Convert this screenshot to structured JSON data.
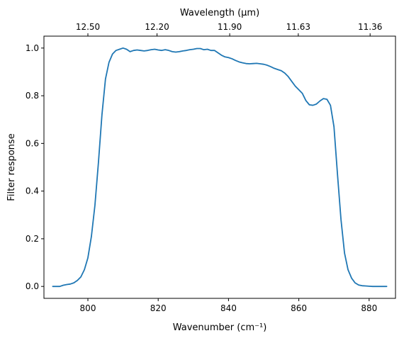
{
  "chart_data": {
    "type": "line",
    "title": "",
    "xlabel": "Wavenumber (cm⁻¹)",
    "ylabel": "Filter response",
    "top_xlabel": "Wavelength (μm)",
    "xlim": [
      787.5,
      887.5
    ],
    "ylim": [
      -0.05,
      1.05
    ],
    "x_ticks": [
      800,
      820,
      840,
      860,
      880
    ],
    "x_tick_labels": [
      "800",
      "820",
      "840",
      "860",
      "880"
    ],
    "y_ticks": [
      0.0,
      0.2,
      0.4,
      0.6,
      0.8,
      1.0
    ],
    "y_tick_labels": [
      "0.0",
      "0.2",
      "0.4",
      "0.6",
      "0.8",
      "1.0"
    ],
    "top_x_ticks": [
      800.0,
      819.67,
      840.34,
      859.85,
      880.28
    ],
    "top_x_tick_labels": [
      "12.50",
      "12.20",
      "11.90",
      "11.63",
      "11.36"
    ],
    "grid": false,
    "line_color": "#1f77b4",
    "series": [
      {
        "x": [
          790,
          791,
          792,
          793,
          794,
          795,
          796,
          797,
          798,
          799,
          800,
          801,
          802,
          803,
          804,
          805,
          806,
          807,
          808,
          809,
          810,
          811,
          812,
          813,
          814,
          815,
          816,
          817,
          818,
          819,
          820,
          821,
          822,
          823,
          824,
          825,
          826,
          827,
          828,
          829,
          830,
          831,
          832,
          833,
          834,
          835,
          836,
          837,
          838,
          839,
          840,
          841,
          842,
          843,
          844,
          845,
          846,
          847,
          848,
          849,
          850,
          851,
          852,
          853,
          854,
          855,
          856,
          857,
          858,
          859,
          860,
          861,
          862,
          863,
          864,
          865,
          866,
          867,
          868,
          869,
          870,
          871,
          872,
          873,
          874,
          875,
          876,
          877,
          878,
          879,
          880,
          881,
          882,
          883,
          884,
          885
        ],
        "y": [
          0.0,
          0.0,
          0.0,
          0.005,
          0.008,
          0.01,
          0.015,
          0.025,
          0.04,
          0.07,
          0.12,
          0.21,
          0.34,
          0.52,
          0.72,
          0.87,
          0.94,
          0.975,
          0.99,
          0.995,
          1.0,
          0.995,
          0.985,
          0.99,
          0.992,
          0.99,
          0.988,
          0.99,
          0.993,
          0.995,
          0.992,
          0.99,
          0.993,
          0.99,
          0.985,
          0.983,
          0.985,
          0.988,
          0.99,
          0.993,
          0.995,
          0.998,
          0.998,
          0.993,
          0.995,
          0.99,
          0.99,
          0.98,
          0.97,
          0.963,
          0.96,
          0.955,
          0.948,
          0.942,
          0.938,
          0.935,
          0.934,
          0.935,
          0.936,
          0.934,
          0.932,
          0.928,
          0.922,
          0.915,
          0.91,
          0.905,
          0.895,
          0.88,
          0.86,
          0.84,
          0.825,
          0.81,
          0.78,
          0.762,
          0.76,
          0.765,
          0.778,
          0.788,
          0.785,
          0.76,
          0.67,
          0.47,
          0.28,
          0.14,
          0.07,
          0.035,
          0.015,
          0.006,
          0.003,
          0.002,
          0.001,
          0.0,
          0.0,
          0.0,
          0.0,
          0.0
        ]
      }
    ]
  }
}
